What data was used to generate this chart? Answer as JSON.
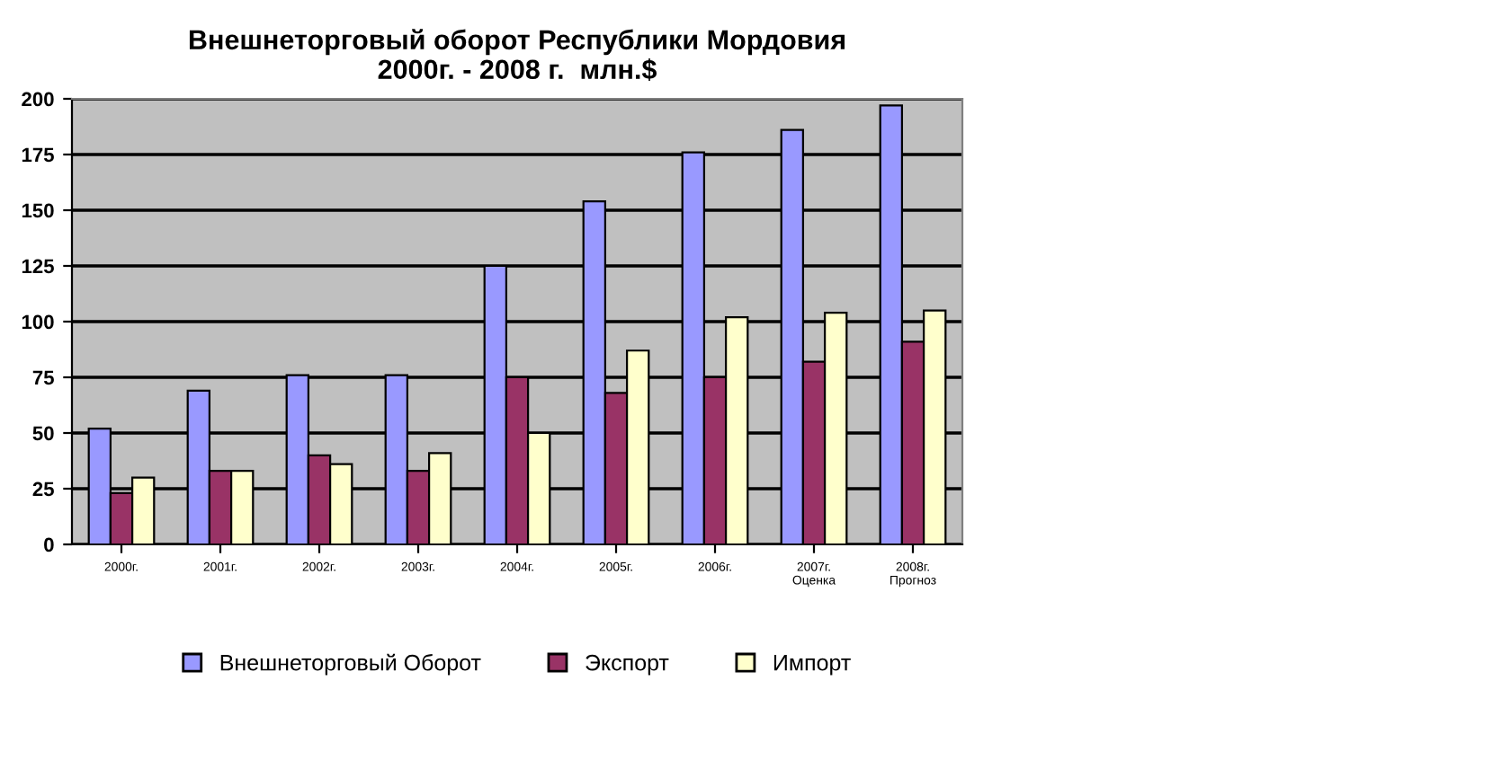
{
  "chart_data": {
    "type": "bar",
    "title": "Внешнеторговый оборот Республики Мордовия\n2000г. - 2008 г.  млн.$",
    "categories": [
      "2000г.",
      "2001г.",
      "2002г.",
      "2003г.",
      "2004г.",
      "2005г.",
      "2006г.",
      "2007г.\nОценка",
      "2008г.\nПрогноз"
    ],
    "series": [
      {
        "name": "Внешнеторговый Оборот",
        "color": "#9999ff",
        "values": [
          52,
          69,
          76,
          76,
          125,
          154,
          176,
          186,
          197
        ]
      },
      {
        "name": "Экспорт",
        "color": "#993366",
        "values": [
          23,
          33,
          40,
          33,
          75,
          68,
          75,
          82,
          91
        ]
      },
      {
        "name": "Импорт",
        "color": "#ffffcc",
        "values": [
          30,
          33,
          36,
          41,
          50,
          87,
          102,
          104,
          105
        ]
      }
    ],
    "ylim": [
      0,
      200
    ],
    "yticks": [
      0,
      25,
      50,
      75,
      100,
      125,
      150,
      175,
      200
    ],
    "grid": "y",
    "legend": "bottom"
  }
}
